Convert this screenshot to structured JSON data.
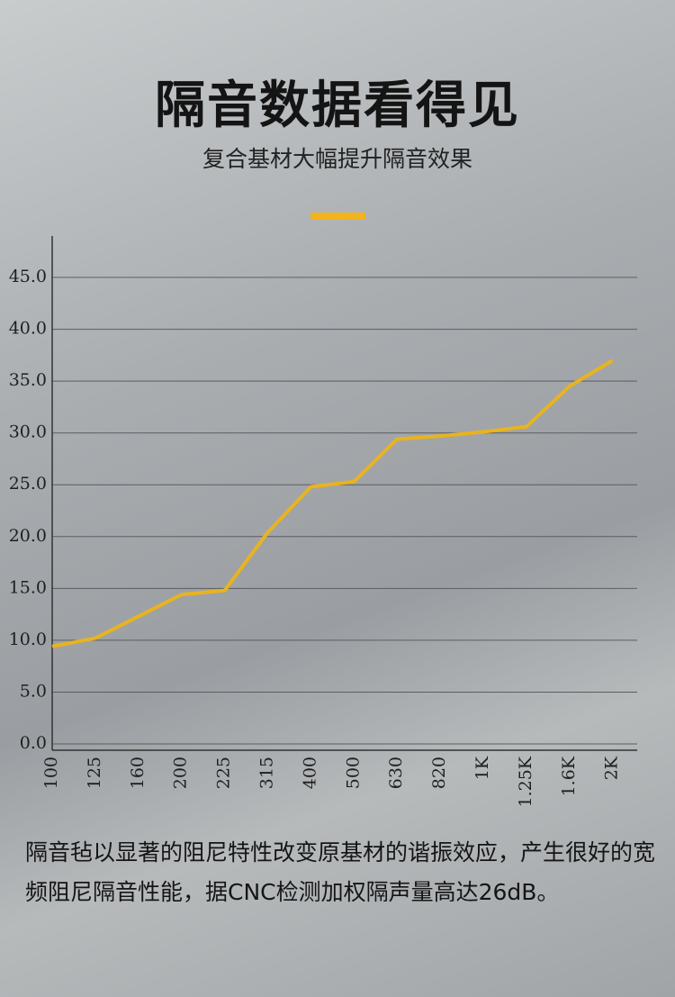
{
  "chart_data": {
    "type": "line",
    "title": "隔音数据看得见",
    "subtitle": "复合基材大幅提升隔音效果",
    "categories": [
      "100",
      "125",
      "160",
      "200",
      "225",
      "315",
      "400",
      "500",
      "630",
      "820",
      "1K",
      "1.25K",
      "1.6K",
      "2K"
    ],
    "values": [
      9.4,
      10.2,
      12.3,
      14.4,
      14.8,
      20.4,
      24.8,
      25.3,
      29.4,
      29.7,
      30.1,
      30.6,
      34.5,
      37.0
    ],
    "color": "#e9b320",
    "ylim": [
      0,
      49
    ],
    "yticks": [
      {
        "value": 0,
        "label": "0.0"
      },
      {
        "value": 5,
        "label": "5.0"
      },
      {
        "value": 10,
        "label": "10.0"
      },
      {
        "value": 15,
        "label": "15.0"
      },
      {
        "value": 20,
        "label": "20.0"
      },
      {
        "value": 25,
        "label": "25.0"
      },
      {
        "value": 30,
        "label": "30.0"
      },
      {
        "value": 35,
        "label": "35.0"
      },
      {
        "value": 40,
        "label": "40.0"
      },
      {
        "value": 45,
        "label": "45.0"
      }
    ],
    "grid": true,
    "description": "隔音毡以显著的阻尼特性改变原基材的谐振效应，产生很好的宽频阻尼隔音性能，据CNC检测加权隔声量高达26dB。"
  }
}
